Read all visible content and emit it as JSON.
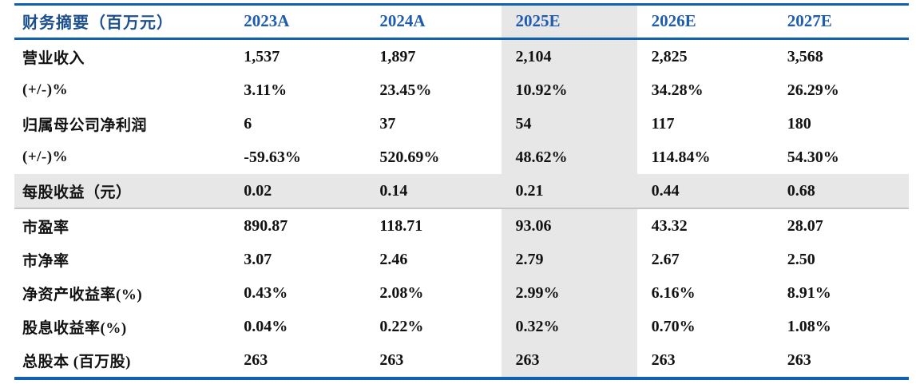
{
  "table": {
    "title": "财务摘要（百万元）",
    "columns": [
      "2023A",
      "2024A",
      "2025E",
      "2026E",
      "2027E"
    ],
    "highlight_column": "2025E",
    "highlight_row": "每股收益（元）",
    "rows": [
      {
        "label": "营业收入",
        "values": [
          "1,537",
          "1,897",
          "2,104",
          "2,825",
          "3,568"
        ]
      },
      {
        "label": "(+/-)%",
        "values": [
          "3.11%",
          "23.45%",
          "10.92%",
          "34.28%",
          "26.29%"
        ]
      },
      {
        "label": "归属母公司净利润",
        "values": [
          "6",
          "37",
          "54",
          "117",
          "180"
        ]
      },
      {
        "label": "(+/-)%",
        "values": [
          "-59.63%",
          "520.69%",
          "48.62%",
          "114.84%",
          "54.30%"
        ]
      },
      {
        "label": "每股收益（元）",
        "values": [
          "0.02",
          "0.14",
          "0.21",
          "0.44",
          "0.68"
        ]
      },
      {
        "label": "市盈率",
        "values": [
          "890.87",
          "118.71",
          "93.06",
          "43.32",
          "28.07"
        ]
      },
      {
        "label": "市净率",
        "values": [
          "3.07",
          "2.46",
          "2.79",
          "2.67",
          "2.50"
        ]
      },
      {
        "label": "净资产收益率(%)",
        "values": [
          "0.43%",
          "2.08%",
          "2.99%",
          "6.16%",
          "8.91%"
        ]
      },
      {
        "label": "股息收益率(%)",
        "values": [
          "0.04%",
          "0.22%",
          "0.32%",
          "0.70%",
          "1.08%"
        ]
      },
      {
        "label": "总股本 (百万股)",
        "values": [
          "263",
          "263",
          "263",
          "263",
          "263"
        ]
      }
    ],
    "colors": {
      "accent_blue_line": "#1261ae",
      "column_header_text": "#1e5cb0",
      "title_text": "#1c4f8e",
      "highlight_gray": "#e7e7e7",
      "body_text": "#121212"
    }
  }
}
